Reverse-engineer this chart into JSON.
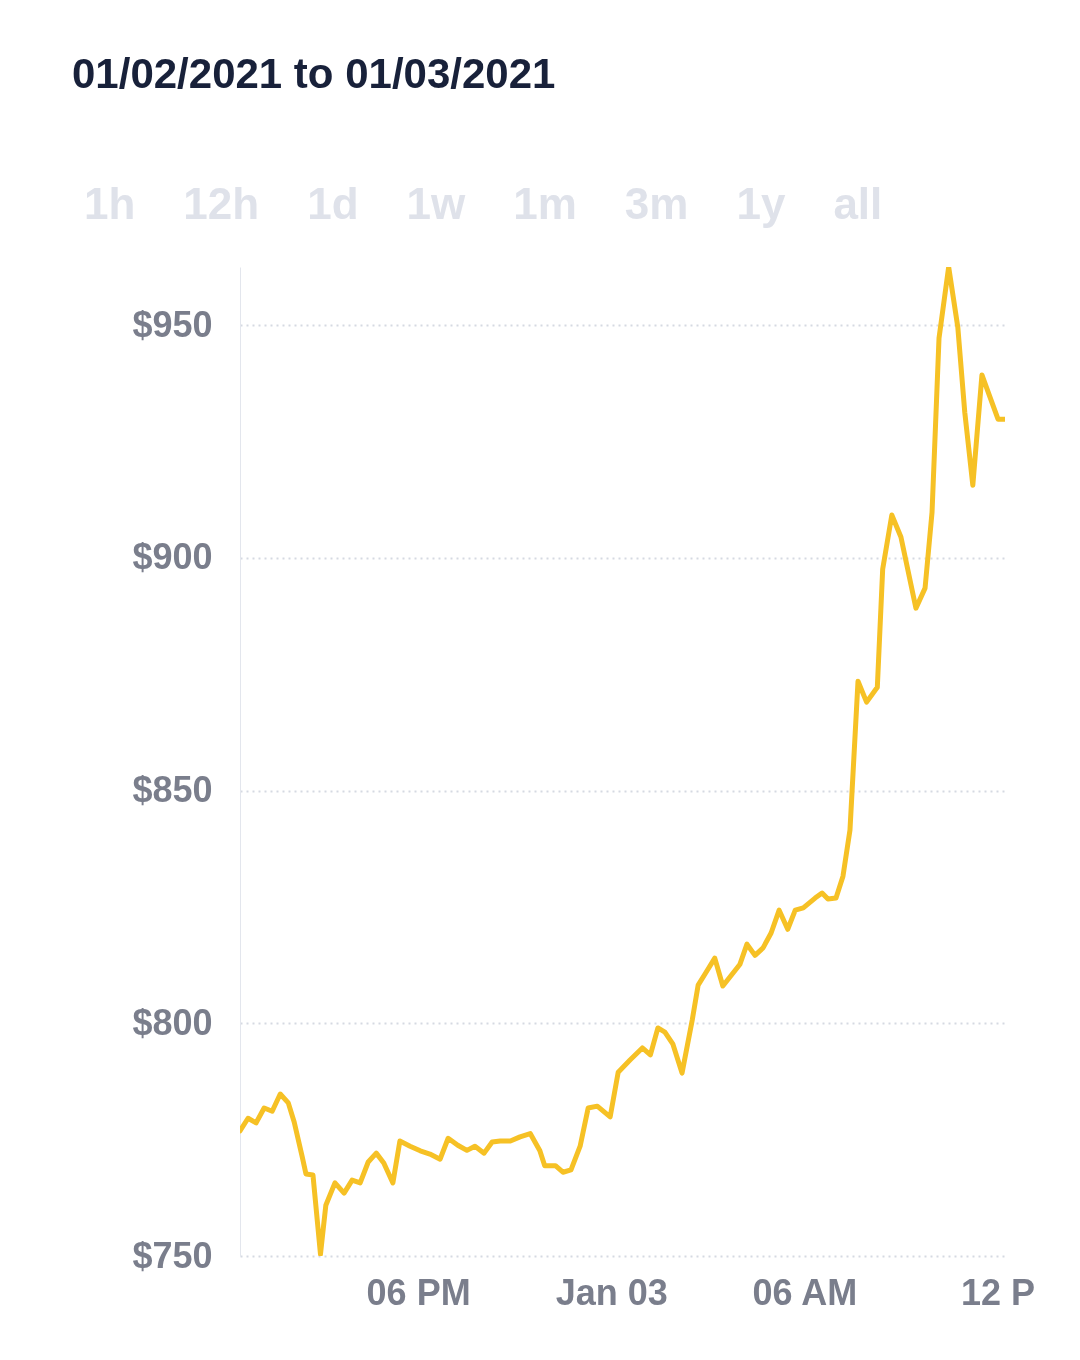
{
  "chart_data": {
    "type": "line",
    "title": "01/02/2021 to 01/03/2021",
    "annotations": [
      "1h",
      "12h",
      "1d",
      "1w",
      "1m",
      "3m",
      "1y",
      "all"
    ],
    "x": [
      "2021-01-02T12:28",
      "2021-01-02T12:43",
      "2021-01-02T12:58",
      "2021-01-02T13:13",
      "2021-01-02T13:28",
      "2021-01-02T13:43",
      "2021-01-02T13:58",
      "2021-01-02T14:09",
      "2021-01-02T14:24",
      "2021-01-02T14:31",
      "2021-01-02T14:44",
      "2021-01-02T14:58",
      "2021-01-02T15:08",
      "2021-01-02T15:25",
      "2021-01-02T15:42",
      "2021-01-02T15:57",
      "2021-01-02T16:12",
      "2021-01-02T16:27",
      "2021-01-02T16:42",
      "2021-01-02T16:56",
      "2021-01-02T17:13",
      "2021-01-02T17:26",
      "2021-01-02T17:45",
      "2021-01-02T18:04",
      "2021-01-02T18:22",
      "2021-01-02T18:41",
      "2021-01-02T18:56",
      "2021-01-02T19:14",
      "2021-01-02T19:31",
      "2021-01-02T19:46",
      "2021-01-02T20:03",
      "2021-01-02T20:18",
      "2021-01-02T20:33",
      "2021-01-02T20:52",
      "2021-01-02T21:10",
      "2021-01-02T21:29",
      "2021-01-02T21:47",
      "2021-01-02T21:56",
      "2021-01-02T22:16",
      "2021-01-02T22:30",
      "2021-01-02T22:45",
      "2021-01-02T23:02",
      "2021-01-02T23:17",
      "2021-01-02T23:34",
      "2021-01-02T23:58",
      "2021-01-03T00:13",
      "2021-01-03T00:35",
      "2021-01-03T00:58",
      "2021-01-03T01:13",
      "2021-01-03T01:27",
      "2021-01-03T01:40",
      "2021-01-03T01:55",
      "2021-01-03T02:12",
      "2021-01-03T02:31",
      "2021-01-03T02:42",
      "2021-01-03T02:56",
      "2021-01-03T03:13",
      "2021-01-03T03:28",
      "2021-01-03T04:00",
      "2021-01-03T04:13",
      "2021-01-03T04:28",
      "2021-01-03T04:43",
      "2021-01-03T04:58",
      "2021-01-03T05:13",
      "2021-01-03T05:29",
      "2021-01-03T05:43",
      "2021-01-03T05:58",
      "2021-01-03T06:20",
      "2021-01-03T06:33",
      "2021-01-03T06:44",
      "2021-01-03T06:59",
      "2021-01-03T07:12",
      "2021-01-03T07:25",
      "2021-01-03T07:40",
      "2021-01-03T07:56",
      "2021-01-03T08:16",
      "2021-01-03T08:26",
      "2021-01-03T08:43",
      "2021-01-03T09:00",
      "2021-01-03T09:28",
      "2021-01-03T09:45",
      "2021-01-03T09:58",
      "2021-01-03T10:11",
      "2021-01-03T10:29",
      "2021-01-03T10:46",
      "2021-01-03T10:59",
      "2021-01-03T11:14",
      "2021-01-03T11:31",
      "2021-01-03T11:44",
      "2021-01-03T12:01",
      "2021-01-03T12:14"
    ],
    "series": [
      {
        "color": "#f6c125",
        "values": [
          776.9,
          779.6,
          778.6,
          781.8,
          781.1,
          784.8,
          782.9,
          778.8,
          771.3,
          767.6,
          767.4,
          750.4,
          760.9,
          765.7,
          763.5,
          766.3,
          765.7,
          770.2,
          772.1,
          770.0,
          765.7,
          774.7,
          773.6,
          772.6,
          771.9,
          770.8,
          775.3,
          773.8,
          772.7,
          773.6,
          772.1,
          774.5,
          774.7,
          774.7,
          775.6,
          776.3,
          772.6,
          769.4,
          769.4,
          768.0,
          768.5,
          773.6,
          781.8,
          782.2,
          779.9,
          789.5,
          792.1,
          794.7,
          793.2,
          799.0,
          798.1,
          795.5,
          789.3,
          800.7,
          808.2,
          810.8,
          814.0,
          808.0,
          812.7,
          817.0,
          814.6,
          816.2,
          819.4,
          824.3,
          820.2,
          824.3,
          824.8,
          826.9,
          828.0,
          826.7,
          826.9,
          831.6,
          841.5,
          873.5,
          869.0,
          872.2,
          897.6,
          909.2,
          904.5,
          889.2,
          893.5,
          909.8,
          947.2,
          962.5,
          949.6,
          931.3,
          915.6,
          939.3,
          935.2,
          929.8,
          929.8
        ]
      }
    ],
    "xlim": [
      "2021-01-02T12:28",
      "2021-01-03T12:14"
    ],
    "xticks": [
      {
        "value": "2021-01-02T18:00",
        "label": "06 PM"
      },
      {
        "value": "2021-01-03T00:00",
        "label": "Jan 03"
      },
      {
        "value": "2021-01-03T06:00",
        "label": "06 AM"
      },
      {
        "value": "2021-01-03T12:00",
        "label": "12 P"
      }
    ],
    "ylim": [
      750,
      962.5
    ],
    "yticks": [
      {
        "value": 750,
        "label": "$750"
      },
      {
        "value": 800,
        "label": "$800"
      },
      {
        "value": 850,
        "label": "$850"
      },
      {
        "value": 900,
        "label": "$900"
      },
      {
        "value": 950,
        "label": "$950"
      }
    ],
    "grid": "y",
    "marker": "none",
    "line_style": "solid"
  }
}
